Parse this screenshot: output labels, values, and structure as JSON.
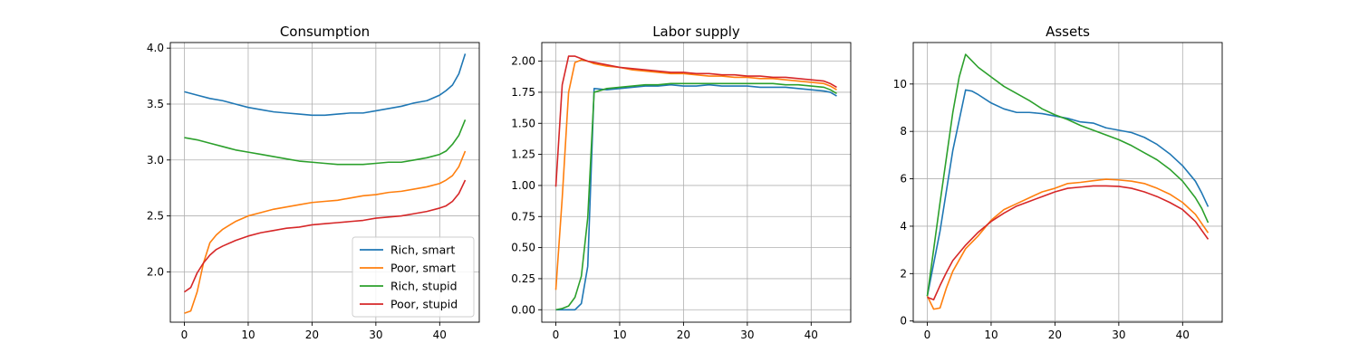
{
  "chart_data": [
    {
      "type": "line",
      "title": "Consumption",
      "xlim": [
        -2.2,
        46.2
      ],
      "ylim": [
        1.55,
        4.05
      ],
      "xticks": [
        0,
        10,
        20,
        30,
        40
      ],
      "yticks": [
        2.0,
        2.5,
        3.0,
        3.5,
        4.0
      ],
      "ytick_labels": [
        "2.0",
        "2.5",
        "3.0",
        "3.5",
        "4.0"
      ],
      "grid": true,
      "legend": "lower-right",
      "series": [
        {
          "name": "Rich, smart",
          "color": "#1f77b4",
          "x": [
            0,
            2,
            4,
            6,
            8,
            10,
            12,
            14,
            16,
            18,
            20,
            22,
            24,
            26,
            28,
            30,
            32,
            34,
            36,
            38,
            40,
            41,
            42,
            43,
            44
          ],
          "y": [
            3.61,
            3.58,
            3.55,
            3.53,
            3.5,
            3.47,
            3.45,
            3.43,
            3.42,
            3.41,
            3.4,
            3.4,
            3.41,
            3.42,
            3.42,
            3.44,
            3.46,
            3.48,
            3.51,
            3.53,
            3.58,
            3.62,
            3.67,
            3.77,
            3.95
          ]
        },
        {
          "name": "Poor, smart",
          "color": "#ff7f0e",
          "x": [
            0,
            1,
            2,
            3,
            4,
            5,
            6,
            8,
            10,
            12,
            14,
            16,
            18,
            20,
            22,
            24,
            26,
            28,
            30,
            32,
            34,
            36,
            38,
            40,
            41,
            42,
            43,
            44
          ],
          "y": [
            1.63,
            1.65,
            1.82,
            2.08,
            2.26,
            2.33,
            2.38,
            2.45,
            2.5,
            2.53,
            2.56,
            2.58,
            2.6,
            2.62,
            2.63,
            2.64,
            2.66,
            2.68,
            2.69,
            2.71,
            2.72,
            2.74,
            2.76,
            2.79,
            2.82,
            2.86,
            2.94,
            3.08
          ]
        },
        {
          "name": "Rich, stupid",
          "color": "#2ca02c",
          "x": [
            0,
            2,
            4,
            6,
            8,
            10,
            12,
            14,
            16,
            18,
            20,
            22,
            24,
            26,
            28,
            30,
            32,
            34,
            36,
            38,
            40,
            41,
            42,
            43,
            44
          ],
          "y": [
            3.2,
            3.18,
            3.15,
            3.12,
            3.09,
            3.07,
            3.05,
            3.03,
            3.01,
            2.99,
            2.98,
            2.97,
            2.96,
            2.96,
            2.96,
            2.97,
            2.98,
            2.98,
            3.0,
            3.02,
            3.05,
            3.08,
            3.14,
            3.22,
            3.36
          ]
        },
        {
          "name": "Poor, stupid",
          "color": "#d62728",
          "x": [
            0,
            1,
            2,
            3,
            4,
            5,
            6,
            8,
            10,
            12,
            14,
            16,
            18,
            20,
            22,
            24,
            26,
            28,
            30,
            32,
            34,
            36,
            38,
            40,
            41,
            42,
            43,
            44
          ],
          "y": [
            1.82,
            1.86,
            1.99,
            2.08,
            2.15,
            2.2,
            2.23,
            2.28,
            2.32,
            2.35,
            2.37,
            2.39,
            2.4,
            2.42,
            2.43,
            2.44,
            2.45,
            2.46,
            2.48,
            2.49,
            2.5,
            2.52,
            2.54,
            2.57,
            2.59,
            2.63,
            2.7,
            2.82
          ]
        }
      ]
    },
    {
      "type": "line",
      "title": "Labor supply",
      "xlim": [
        -2.2,
        46.2
      ],
      "ylim": [
        -0.1,
        2.15
      ],
      "xticks": [
        0,
        10,
        20,
        30,
        40
      ],
      "yticks": [
        0.0,
        0.25,
        0.5,
        0.75,
        1.0,
        1.25,
        1.5,
        1.75,
        2.0
      ],
      "ytick_labels": [
        "0.00",
        "0.25",
        "0.50",
        "0.75",
        "1.00",
        "1.25",
        "1.50",
        "1.75",
        "2.00"
      ],
      "grid": true,
      "series": [
        {
          "name": "Rich, smart",
          "color": "#1f77b4",
          "x": [
            0,
            1,
            2,
            3,
            4,
            5,
            6,
            8,
            10,
            12,
            14,
            16,
            18,
            20,
            22,
            24,
            26,
            28,
            30,
            32,
            34,
            36,
            38,
            40,
            42,
            43,
            44
          ],
          "y": [
            0.0,
            0.0,
            0.0,
            0.0,
            0.05,
            0.35,
            1.78,
            1.77,
            1.78,
            1.79,
            1.8,
            1.8,
            1.81,
            1.8,
            1.8,
            1.81,
            1.8,
            1.8,
            1.8,
            1.79,
            1.79,
            1.79,
            1.78,
            1.77,
            1.76,
            1.75,
            1.72
          ]
        },
        {
          "name": "Poor, smart",
          "color": "#ff7f0e",
          "x": [
            0,
            1,
            2,
            3,
            4,
            5,
            6,
            8,
            10,
            12,
            14,
            16,
            18,
            20,
            22,
            24,
            26,
            28,
            30,
            32,
            34,
            36,
            38,
            40,
            42,
            43,
            44
          ],
          "y": [
            0.16,
            0.9,
            1.75,
            1.99,
            2.01,
            2.0,
            1.98,
            1.96,
            1.95,
            1.93,
            1.92,
            1.91,
            1.9,
            1.9,
            1.89,
            1.88,
            1.88,
            1.87,
            1.87,
            1.86,
            1.86,
            1.85,
            1.84,
            1.83,
            1.82,
            1.8,
            1.77
          ]
        },
        {
          "name": "Rich, stupid",
          "color": "#2ca02c",
          "x": [
            0,
            1,
            2,
            3,
            4,
            5,
            6,
            8,
            10,
            12,
            14,
            16,
            18,
            20,
            22,
            24,
            26,
            28,
            30,
            32,
            34,
            36,
            38,
            40,
            42,
            43,
            44
          ],
          "y": [
            0.0,
            0.01,
            0.03,
            0.1,
            0.27,
            0.74,
            1.75,
            1.78,
            1.79,
            1.8,
            1.81,
            1.81,
            1.82,
            1.82,
            1.82,
            1.82,
            1.82,
            1.82,
            1.82,
            1.82,
            1.82,
            1.81,
            1.81,
            1.8,
            1.79,
            1.77,
            1.74
          ]
        },
        {
          "name": "Poor, stupid",
          "color": "#d62728",
          "x": [
            0,
            1,
            2,
            3,
            4,
            5,
            6,
            8,
            10,
            12,
            14,
            16,
            18,
            20,
            22,
            24,
            26,
            28,
            30,
            32,
            34,
            36,
            38,
            40,
            42,
            43,
            44
          ],
          "y": [
            0.99,
            1.81,
            2.04,
            2.04,
            2.02,
            2.0,
            1.99,
            1.97,
            1.95,
            1.94,
            1.93,
            1.92,
            1.91,
            1.91,
            1.9,
            1.9,
            1.89,
            1.89,
            1.88,
            1.88,
            1.87,
            1.87,
            1.86,
            1.85,
            1.84,
            1.82,
            1.79
          ]
        }
      ]
    },
    {
      "type": "line",
      "title": "Assets",
      "xlim": [
        -2.2,
        46.2
      ],
      "ylim": [
        -0.05,
        11.75
      ],
      "xticks": [
        0,
        10,
        20,
        30,
        40
      ],
      "yticks": [
        0,
        2,
        4,
        6,
        8,
        10
      ],
      "ytick_labels": [
        "0",
        "2",
        "4",
        "6",
        "8",
        "10"
      ],
      "grid": true,
      "series": [
        {
          "name": "Rich, smart",
          "color": "#1f77b4",
          "x": [
            0,
            2,
            4,
            6,
            7,
            8,
            10,
            12,
            14,
            16,
            18,
            20,
            22,
            24,
            26,
            28,
            30,
            32,
            34,
            36,
            38,
            40,
            42,
            43,
            44
          ],
          "y": [
            1.05,
            3.8,
            7.2,
            9.75,
            9.7,
            9.55,
            9.2,
            8.95,
            8.8,
            8.8,
            8.75,
            8.65,
            8.55,
            8.4,
            8.35,
            8.15,
            8.05,
            7.95,
            7.75,
            7.45,
            7.05,
            6.55,
            5.9,
            5.4,
            4.82
          ]
        },
        {
          "name": "Poor, smart",
          "color": "#ff7f0e",
          "x": [
            0,
            1,
            2,
            3,
            4,
            6,
            8,
            10,
            12,
            14,
            16,
            18,
            20,
            22,
            24,
            26,
            28,
            30,
            32,
            34,
            36,
            38,
            40,
            42,
            44
          ],
          "y": [
            1.05,
            0.5,
            0.55,
            1.4,
            2.1,
            3.05,
            3.6,
            4.25,
            4.7,
            4.95,
            5.2,
            5.45,
            5.6,
            5.8,
            5.85,
            5.92,
            5.98,
            5.95,
            5.9,
            5.8,
            5.6,
            5.35,
            5.0,
            4.5,
            3.72
          ]
        },
        {
          "name": "Rich, stupid",
          "color": "#2ca02c",
          "x": [
            0,
            2,
            4,
            5,
            6,
            8,
            10,
            12,
            14,
            16,
            18,
            20,
            22,
            24,
            26,
            28,
            30,
            32,
            34,
            36,
            38,
            40,
            42,
            43,
            44
          ],
          "y": [
            1.05,
            5.0,
            8.8,
            10.3,
            11.25,
            10.7,
            10.3,
            9.9,
            9.6,
            9.3,
            8.95,
            8.7,
            8.5,
            8.25,
            8.05,
            7.85,
            7.65,
            7.4,
            7.1,
            6.8,
            6.4,
            5.9,
            5.2,
            4.75,
            4.15
          ]
        },
        {
          "name": "Poor, stupid",
          "color": "#d62728",
          "x": [
            0,
            1,
            2,
            3,
            4,
            6,
            8,
            10,
            12,
            14,
            16,
            18,
            20,
            22,
            24,
            26,
            28,
            30,
            32,
            34,
            36,
            38,
            40,
            42,
            44
          ],
          "y": [
            1.0,
            0.9,
            1.5,
            2.05,
            2.55,
            3.2,
            3.75,
            4.2,
            4.55,
            4.85,
            5.05,
            5.25,
            5.45,
            5.6,
            5.65,
            5.7,
            5.7,
            5.68,
            5.6,
            5.45,
            5.25,
            5.0,
            4.7,
            4.2,
            3.45
          ]
        }
      ]
    }
  ]
}
